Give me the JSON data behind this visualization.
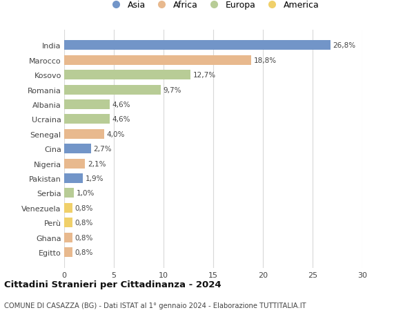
{
  "categories": [
    "India",
    "Marocco",
    "Kosovo",
    "Romania",
    "Albania",
    "Ucraina",
    "Senegal",
    "Cina",
    "Nigeria",
    "Pakistan",
    "Serbia",
    "Venezuela",
    "Perù",
    "Ghana",
    "Egitto"
  ],
  "values": [
    26.8,
    18.8,
    12.7,
    9.7,
    4.6,
    4.6,
    4.0,
    2.7,
    2.1,
    1.9,
    1.0,
    0.8,
    0.8,
    0.8,
    0.8
  ],
  "labels": [
    "26,8%",
    "18,8%",
    "12,7%",
    "9,7%",
    "4,6%",
    "4,6%",
    "4,0%",
    "2,7%",
    "2,1%",
    "1,9%",
    "1,0%",
    "0,8%",
    "0,8%",
    "0,8%",
    "0,8%"
  ],
  "continents": [
    "Asia",
    "Africa",
    "Europa",
    "Europa",
    "Europa",
    "Europa",
    "Africa",
    "Asia",
    "Africa",
    "Asia",
    "Europa",
    "America",
    "America",
    "Africa",
    "Africa"
  ],
  "colors": {
    "Asia": "#7295c8",
    "Africa": "#e8b98e",
    "Europa": "#b8cc96",
    "America": "#f0d06a"
  },
  "legend_order": [
    "Asia",
    "Africa",
    "Europa",
    "America"
  ],
  "title": "Cittadini Stranieri per Cittadinanza - 2024",
  "subtitle": "COMUNE DI CASAZZA (BG) - Dati ISTAT al 1° gennaio 2024 - Elaborazione TUTTITALIA.IT",
  "xlim": [
    0,
    30
  ],
  "xticks": [
    0,
    5,
    10,
    15,
    20,
    25,
    30
  ],
  "background_color": "#ffffff",
  "grid_color": "#d8d8d8"
}
